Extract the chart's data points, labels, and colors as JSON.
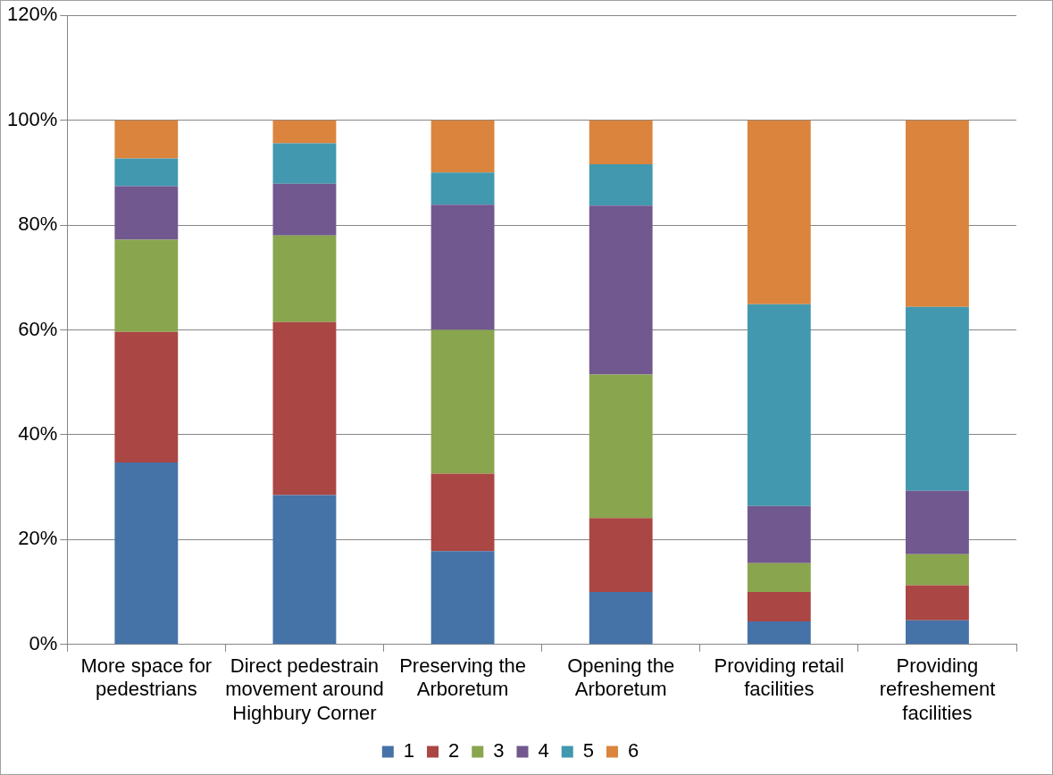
{
  "chart_data": {
    "type": "bar",
    "stacked": true,
    "categories": [
      "More space for pedestrians",
      "Direct pedestrain movement around Highbury Corner",
      "Preserving the Arboretum",
      "Opening the Arboretum",
      "Providing retail facilities",
      "Providing refreshement facilities"
    ],
    "series": [
      {
        "name": "1",
        "color": "#4572a7",
        "values": [
          34.7,
          28.5,
          17.8,
          10.0,
          4.4,
          4.6
        ]
      },
      {
        "name": "2",
        "color": "#aa4643",
        "values": [
          24.9,
          33.0,
          14.8,
          14.1,
          5.6,
          6.7
        ]
      },
      {
        "name": "3",
        "color": "#89a54e",
        "values": [
          17.6,
          16.5,
          27.4,
          27.4,
          5.5,
          5.9
        ]
      },
      {
        "name": "4",
        "color": "#71588f",
        "values": [
          10.2,
          9.9,
          23.9,
          32.2,
          10.9,
          12.1
        ]
      },
      {
        "name": "5",
        "color": "#4198af",
        "values": [
          5.3,
          7.7,
          6.1,
          7.9,
          38.5,
          35.1
        ]
      },
      {
        "name": "6",
        "color": "#db843d",
        "values": [
          7.3,
          4.4,
          10.0,
          8.4,
          35.1,
          35.6
        ]
      }
    ],
    "ylim": [
      0,
      120
    ],
    "yticks": [
      {
        "value": 0,
        "label": "0%"
      },
      {
        "value": 20,
        "label": "20%"
      },
      {
        "value": 40,
        "label": "40%"
      },
      {
        "value": 60,
        "label": "60%"
      },
      {
        "value": 80,
        "label": "80%"
      },
      {
        "value": 100,
        "label": "100%"
      },
      {
        "value": 120,
        "label": "120%"
      }
    ],
    "grid": "y",
    "legend": "bottom"
  }
}
